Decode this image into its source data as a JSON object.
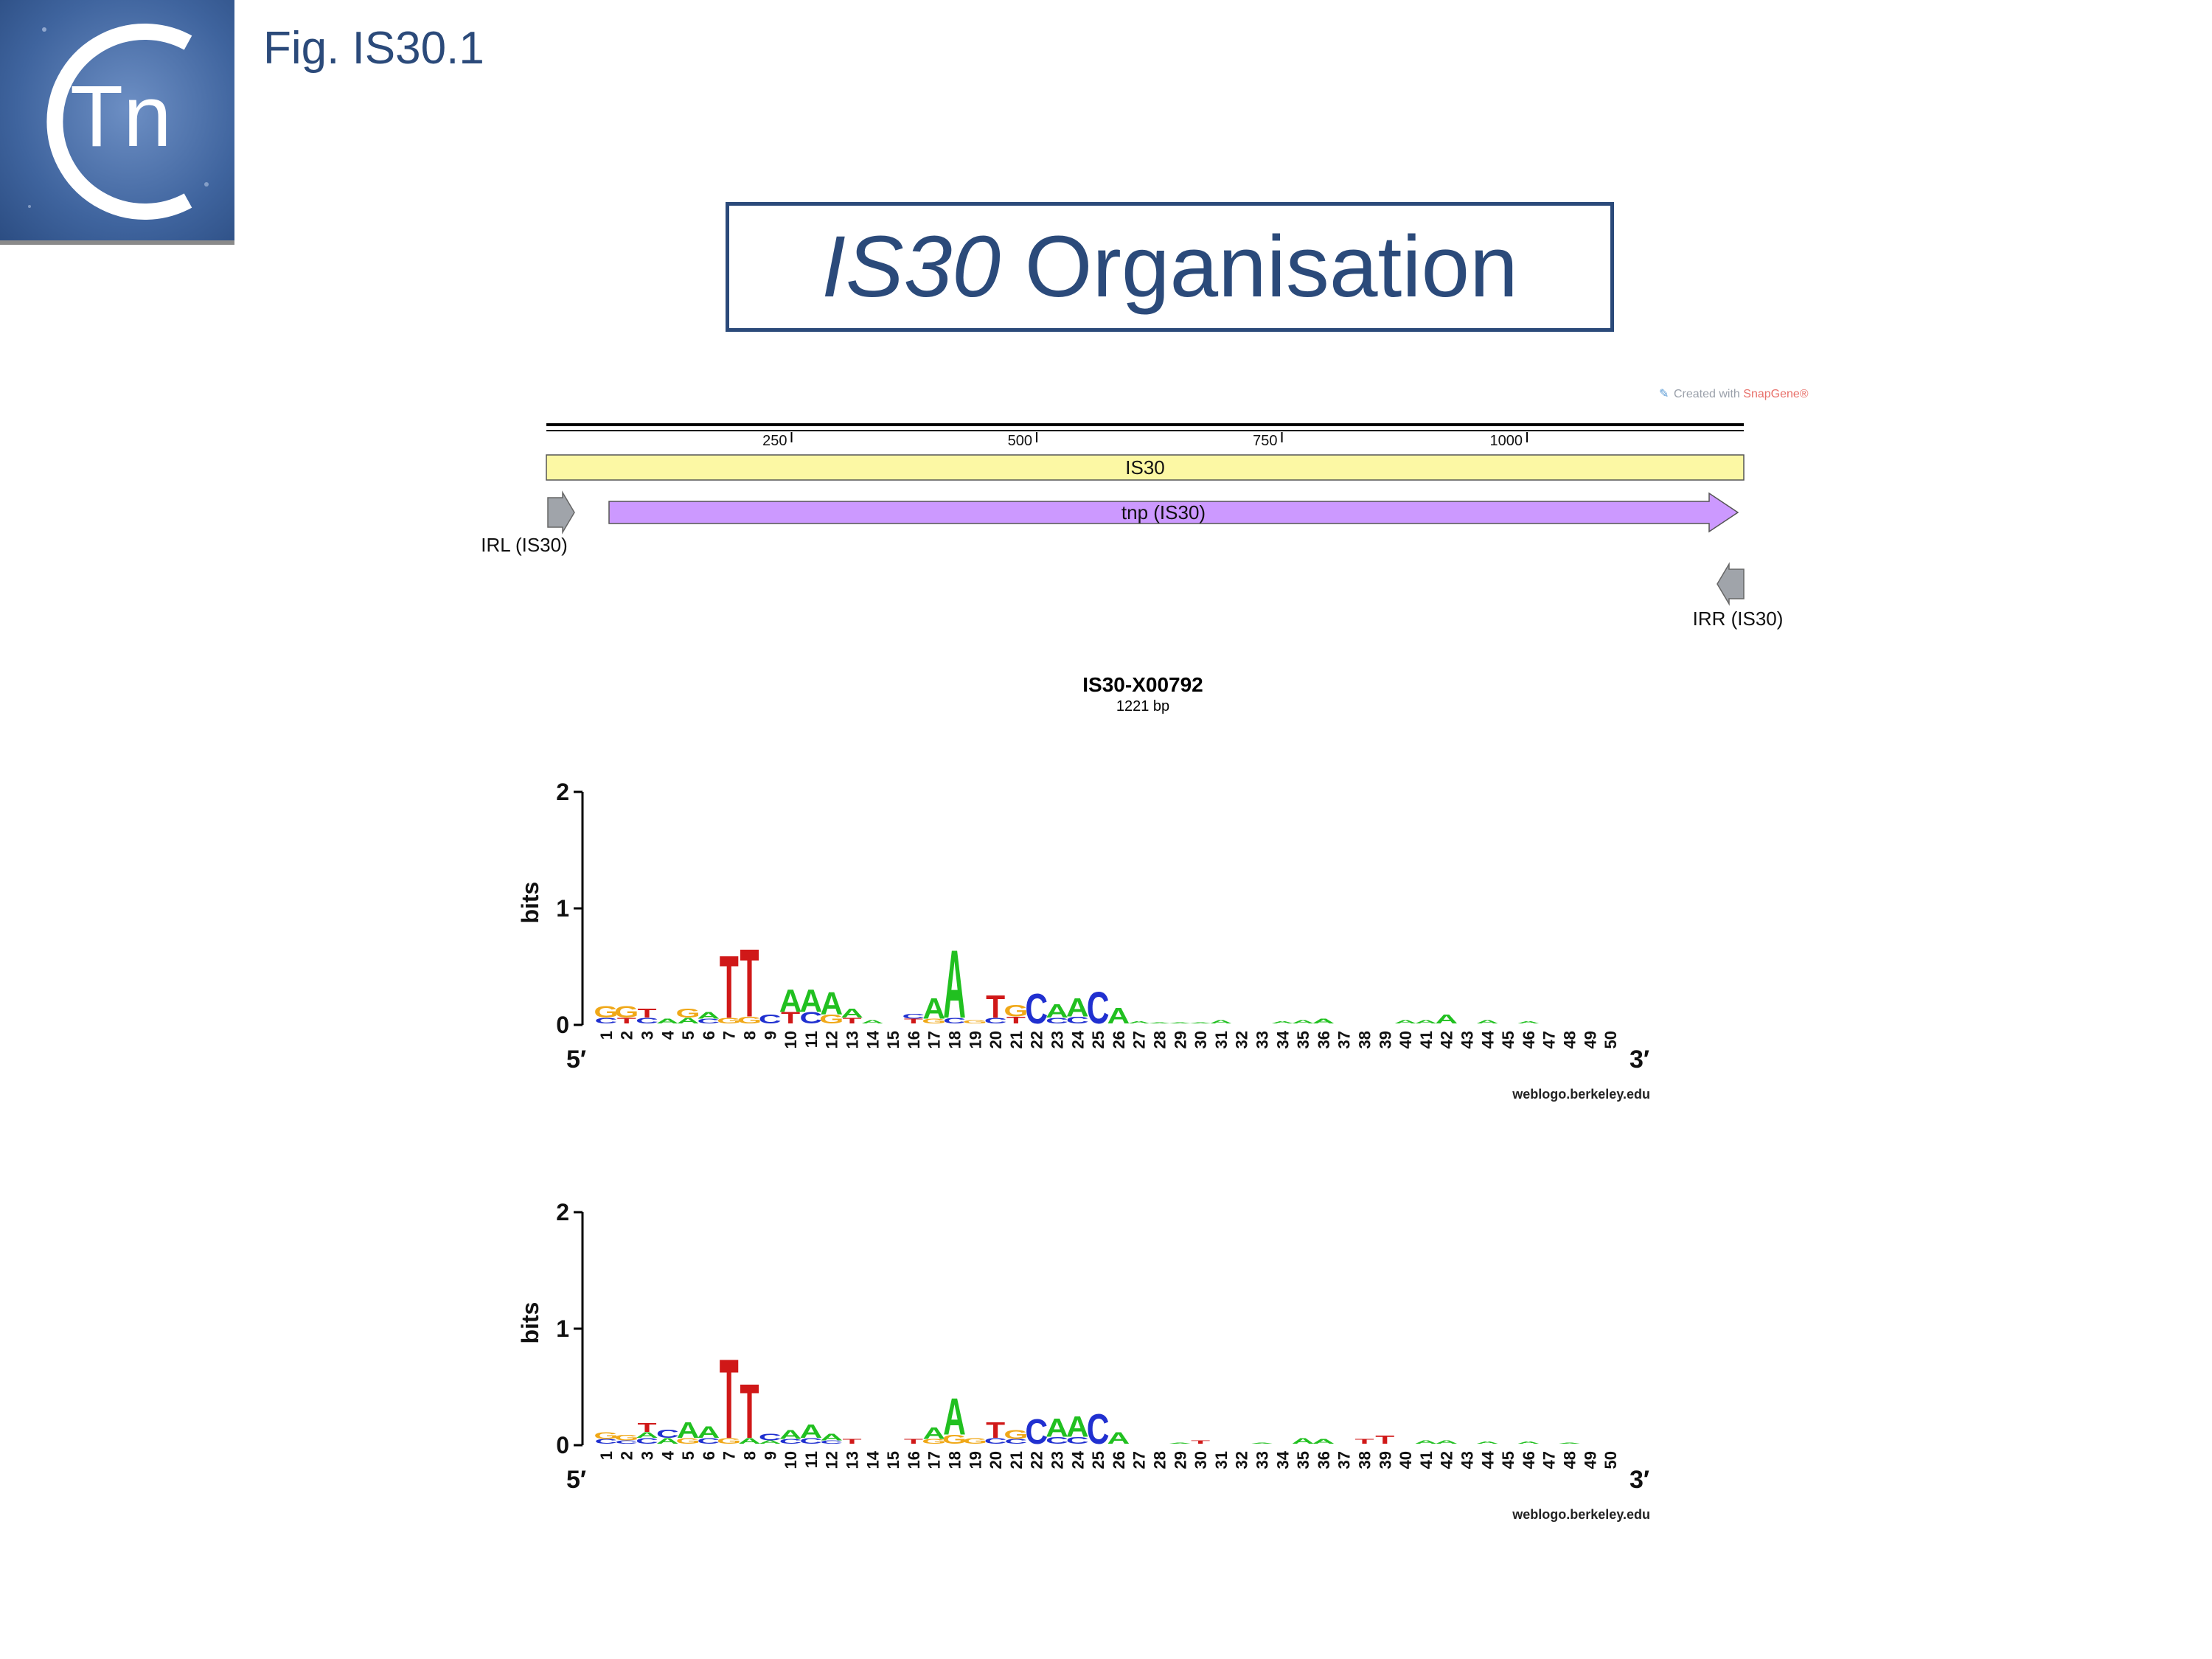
{
  "figure_label": "Fig. IS30.1",
  "logo": {
    "text": "Tn",
    "icon": "ctn-logo-icon"
  },
  "title": {
    "italic": "IS30",
    "rest": " Organisation"
  },
  "map": {
    "credit_prefix": "Created with ",
    "credit_brand": "SnapGene®",
    "ruler_ticks": [
      "250",
      "500",
      "750",
      "1000"
    ],
    "is_feature": "IS30",
    "tnp_feature": "tnp (IS30)",
    "irl_label": "IRL (IS30)",
    "irr_label": "IRR (IS30)",
    "name": "IS30-X00792",
    "length": "1221 bp",
    "colors": {
      "is_fill": "#fcf8a4",
      "tnp_fill": "#cc99ff",
      "ir_fill": "#a0a4aa"
    }
  },
  "logos": [
    {
      "y_axis_label": "bits",
      "y_ticks": [
        "0",
        "1",
        "2"
      ],
      "five_prime": "5′",
      "three_prime": "3′",
      "credit": "weblogo.berkeley.edu",
      "positions": [
        "1",
        "2",
        "3",
        "4",
        "5",
        "6",
        "7",
        "8",
        "9",
        "10",
        "11",
        "12",
        "13",
        "14",
        "15",
        "16",
        "17",
        "18",
        "19",
        "20",
        "21",
        "22",
        "23",
        "24",
        "25",
        "26",
        "27",
        "28",
        "29",
        "30",
        "31",
        "32",
        "33",
        "34",
        "35",
        "36",
        "37",
        "38",
        "39",
        "40",
        "41",
        "42",
        "43",
        "44",
        "45",
        "46",
        "47",
        "48",
        "49",
        "50"
      ],
      "stacks": [
        [
          [
            "G",
            0.1
          ],
          [
            "C",
            0.05
          ]
        ],
        [
          [
            "G",
            0.1
          ],
          [
            "T",
            0.05
          ]
        ],
        [
          [
            "T",
            0.08
          ],
          [
            "C",
            0.05
          ]
        ],
        [
          [
            "A",
            0.04
          ]
        ],
        [
          [
            "G",
            0.08
          ],
          [
            "A",
            0.05
          ]
        ],
        [
          [
            "A",
            0.06
          ],
          [
            "C",
            0.04
          ]
        ],
        [
          [
            "T",
            0.55
          ],
          [
            "G",
            0.05
          ]
        ],
        [
          [
            "T",
            0.6
          ],
          [
            "G",
            0.06
          ]
        ],
        [
          [
            "C",
            0.08
          ]
        ],
        [
          [
            "T",
            0.1
          ],
          [
            "A",
            0.2
          ]
        ],
        [
          [
            "C",
            0.1
          ],
          [
            "A",
            0.2
          ]
        ],
        [
          [
            "G",
            0.08
          ],
          [
            "A",
            0.2
          ]
        ],
        [
          [
            "T",
            0.05
          ],
          [
            "A",
            0.08
          ]
        ],
        [
          [
            "A",
            0.03
          ]
        ],
        [],
        [
          [
            "T",
            0.04
          ],
          [
            "C",
            0.04
          ]
        ],
        [
          [
            "A",
            0.18
          ],
          [
            "G",
            0.04
          ]
        ],
        [
          [
            "A",
            0.6
          ],
          [
            "C",
            0.05
          ]
        ],
        [
          [
            "G",
            0.03
          ]
        ],
        [
          [
            "C",
            0.05
          ],
          [
            "T",
            0.2
          ]
        ],
        [
          [
            "T",
            0.06
          ],
          [
            "G",
            0.1
          ]
        ],
        [
          [
            "C",
            0.26
          ]
        ],
        [
          [
            "A",
            0.12
          ],
          [
            "C",
            0.05
          ]
        ],
        [
          [
            "A",
            0.16
          ],
          [
            "C",
            0.06
          ]
        ],
        [
          [
            "C",
            0.28
          ]
        ],
        [
          [
            "A",
            0.14
          ]
        ],
        [
          [
            "A",
            0.02
          ]
        ],
        [
          [
            "A",
            0.01
          ]
        ],
        [
          [
            "A",
            0.01
          ]
        ],
        [
          [
            "A",
            0.01
          ]
        ],
        [
          [
            "A",
            0.03
          ]
        ],
        [],
        [],
        [
          [
            "A",
            0.02
          ]
        ],
        [
          [
            "A",
            0.03
          ]
        ],
        [
          [
            "A",
            0.04
          ]
        ],
        [],
        [],
        [],
        [
          [
            "A",
            0.03
          ]
        ],
        [
          [
            "A",
            0.03
          ]
        ],
        [
          [
            "A",
            0.08
          ]
        ],
        [],
        [
          [
            "A",
            0.03
          ]
        ],
        [],
        [
          [
            "A",
            0.02
          ]
        ],
        [],
        [],
        [],
        []
      ]
    },
    {
      "y_axis_label": "bits",
      "y_ticks": [
        "0",
        "1",
        "2"
      ],
      "five_prime": "5′",
      "three_prime": "3′",
      "credit": "weblogo.berkeley.edu",
      "positions": [
        "1",
        "2",
        "3",
        "4",
        "5",
        "6",
        "7",
        "8",
        "9",
        "10",
        "11",
        "12",
        "13",
        "14",
        "15",
        "16",
        "17",
        "18",
        "19",
        "20",
        "21",
        "22",
        "23",
        "24",
        "25",
        "26",
        "27",
        "28",
        "29",
        "30",
        "31",
        "32",
        "33",
        "34",
        "35",
        "36",
        "37",
        "38",
        "39",
        "40",
        "41",
        "42",
        "43",
        "44",
        "45",
        "46",
        "47",
        "48",
        "49",
        "50"
      ],
      "stacks": [
        [
          [
            "G",
            0.06
          ],
          [
            "C",
            0.04
          ]
        ],
        [
          [
            "G",
            0.05
          ],
          [
            "C",
            0.03
          ]
        ],
        [
          [
            "T",
            0.08
          ],
          [
            "C",
            0.05
          ],
          [
            "A",
            0.05
          ]
        ],
        [
          [
            "C",
            0.07
          ],
          [
            "A",
            0.05
          ]
        ],
        [
          [
            "A",
            0.14
          ],
          [
            "G",
            0.05
          ]
        ],
        [
          [
            "A",
            0.1
          ],
          [
            "C",
            0.05
          ]
        ],
        [
          [
            "T",
            0.7
          ],
          [
            "G",
            0.05
          ]
        ],
        [
          [
            "T",
            0.48
          ],
          [
            "A",
            0.05
          ]
        ],
        [
          [
            "C",
            0.06
          ],
          [
            "A",
            0.03
          ]
        ],
        [
          [
            "A",
            0.08
          ],
          [
            "C",
            0.04
          ]
        ],
        [
          [
            "A",
            0.12
          ],
          [
            "C",
            0.05
          ]
        ],
        [
          [
            "A",
            0.06
          ],
          [
            "C",
            0.03
          ]
        ],
        [
          [
            "T",
            0.04
          ]
        ],
        [],
        [],
        [
          [
            "T",
            0.04
          ]
        ],
        [
          [
            "A",
            0.1
          ],
          [
            "G",
            0.04
          ]
        ],
        [
          [
            "A",
            0.32
          ],
          [
            "G",
            0.08
          ]
        ],
        [
          [
            "G",
            0.05
          ]
        ],
        [
          [
            "T",
            0.14
          ],
          [
            "C",
            0.05
          ]
        ],
        [
          [
            "G",
            0.08
          ],
          [
            "C",
            0.04
          ]
        ],
        [
          [
            "C",
            0.22
          ]
        ],
        [
          [
            "A",
            0.16
          ],
          [
            "C",
            0.06
          ]
        ],
        [
          [
            "A",
            0.18
          ],
          [
            "C",
            0.06
          ]
        ],
        [
          [
            "C",
            0.26
          ]
        ],
        [
          [
            "A",
            0.1
          ]
        ],
        [],
        [],
        [
          [
            "A",
            0.01
          ]
        ],
        [
          [
            "T",
            0.03
          ]
        ],
        [],
        [],
        [
          [
            "A",
            0.01
          ]
        ],
        [],
        [
          [
            "A",
            0.05
          ]
        ],
        [
          [
            "A",
            0.04
          ]
        ],
        [],
        [
          [
            "T",
            0.04
          ]
        ],
        [
          [
            "T",
            0.07
          ]
        ],
        [],
        [
          [
            "A",
            0.03
          ]
        ],
        [
          [
            "A",
            0.03
          ]
        ],
        [],
        [
          [
            "A",
            0.02
          ]
        ],
        [],
        [
          [
            "A",
            0.02
          ]
        ],
        [],
        [
          [
            "A",
            0.01
          ]
        ],
        [],
        []
      ]
    }
  ]
}
